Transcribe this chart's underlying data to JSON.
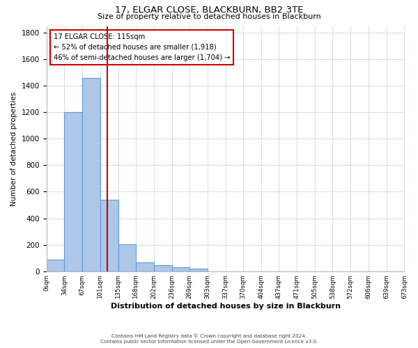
{
  "title": "17, ELGAR CLOSE, BLACKBURN, BB2 3TE",
  "subtitle": "Size of property relative to detached houses in Blackburn",
  "xlabel": "Distribution of detached houses by size in Blackburn",
  "ylabel": "Number of detached properties",
  "bar_edges": [
    0,
    34,
    67,
    101,
    135,
    168,
    202,
    236,
    269,
    303,
    337,
    370,
    404,
    437,
    471,
    505,
    538,
    572,
    606,
    639,
    673
  ],
  "bar_heights": [
    90,
    1200,
    1460,
    540,
    205,
    65,
    48,
    32,
    20,
    0,
    0,
    0,
    0,
    0,
    0,
    0,
    0,
    0,
    0,
    0
  ],
  "bar_color": "#aec6e8",
  "bar_edge_color": "#5b9bd5",
  "property_line_x": 115,
  "property_line_color": "#cc0000",
  "ylim": [
    0,
    1850
  ],
  "yticks": [
    0,
    200,
    400,
    600,
    800,
    1000,
    1200,
    1400,
    1600,
    1800
  ],
  "annotation_text": "17 ELGAR CLOSE: 115sqm\n← 52% of detached houses are smaller (1,918)\n46% of semi-detached houses are larger (1,704) →",
  "annotation_box_color": "#ffffff",
  "annotation_box_edge": "#cc0000",
  "footer_line1": "Contains HM Land Registry data © Crown copyright and database right 2024.",
  "footer_line2": "Contains public sector information licensed under the Open Government Licence v3.0.",
  "background_color": "#ffffff",
  "grid_color": "#d4dff0",
  "tick_labels": [
    "0sqm",
    "34sqm",
    "67sqm",
    "101sqm",
    "135sqm",
    "168sqm",
    "202sqm",
    "236sqm",
    "269sqm",
    "303sqm",
    "337sqm",
    "370sqm",
    "404sqm",
    "437sqm",
    "471sqm",
    "505sqm",
    "538sqm",
    "572sqm",
    "606sqm",
    "639sqm",
    "673sqm"
  ]
}
